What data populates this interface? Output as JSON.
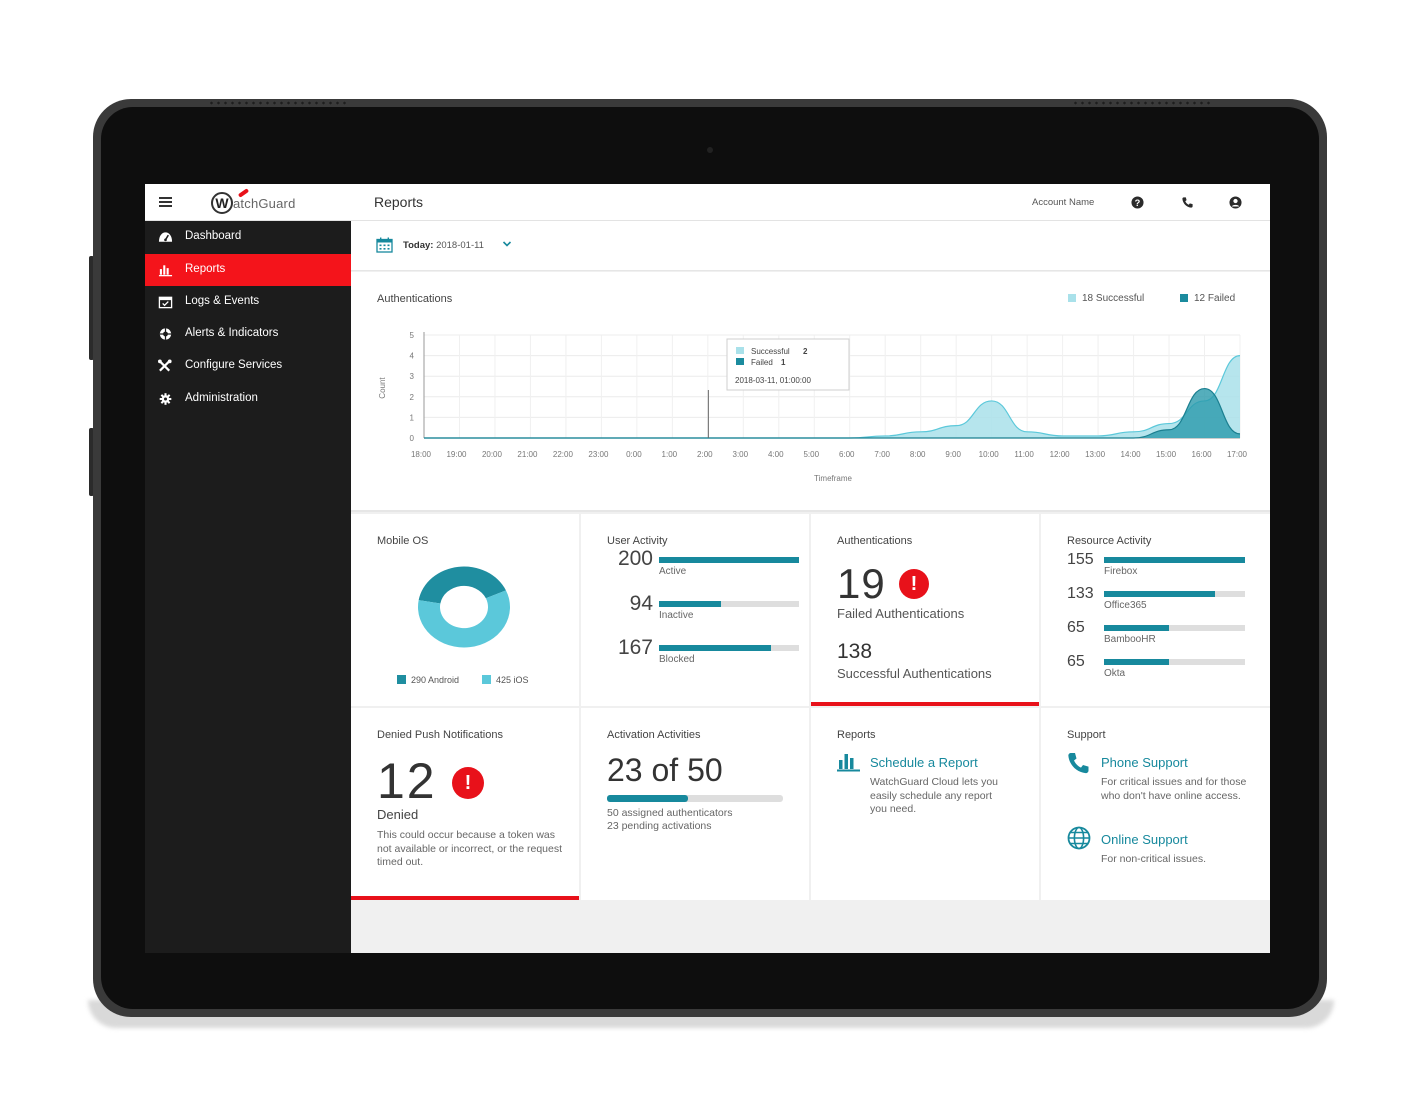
{
  "app": {
    "brand": "WatchGuard",
    "page_title": "Reports"
  },
  "topbar": {
    "account_name": "Account Name",
    "icons": [
      "help-icon",
      "phone-icon",
      "user-icon"
    ]
  },
  "sidebar": {
    "items": [
      {
        "label": "Dashboard",
        "icon": "dashboard-icon",
        "active": false
      },
      {
        "label": "Reports",
        "icon": "bar-chart-icon",
        "active": true
      },
      {
        "label": "Logs & Events",
        "icon": "calendar-check-icon",
        "active": false
      },
      {
        "label": "Alerts & Indicators",
        "icon": "lifebuoy-icon",
        "active": false
      },
      {
        "label": "Configure Services",
        "icon": "tools-icon",
        "active": false
      },
      {
        "label": "Administration",
        "icon": "gear-icon",
        "active": false
      }
    ]
  },
  "date_filter": {
    "prefix": "Today:",
    "value": "2018-01-11"
  },
  "colors": {
    "accent_red": "#f4141b",
    "teal": "#17899d",
    "light_teal": "#79d3e0",
    "success_fill": "#a9e1ea",
    "failed_fill": "#2b9aab"
  },
  "auth_chart": {
    "title": "Authentications",
    "legend": [
      {
        "label": "18 Successful",
        "color": "#a9e1ea"
      },
      {
        "label": "12 Failed",
        "color": "#1b8b9e"
      }
    ],
    "tooltip": {
      "successful_label": "Successful",
      "successful_value": "2",
      "failed_label": "Failed",
      "failed_value": "1",
      "timestamp": "2018-03-11, 01:00:00"
    }
  },
  "chart_data": {
    "type": "area",
    "title": "Authentications",
    "xlabel": "Timeframe",
    "ylabel": "Count",
    "ylim": [
      0,
      5
    ],
    "yticks": [
      0,
      1,
      2,
      3,
      4,
      5
    ],
    "categories": [
      "18:00",
      "19:00",
      "20:00",
      "21:00",
      "22:00",
      "23:00",
      "0:00",
      "1:00",
      "2:00",
      "3:00",
      "4:00",
      "5:00",
      "6:00",
      "7:00",
      "8:00",
      "9:00",
      "10:00",
      "11:00",
      "12:00",
      "13:00",
      "14:00",
      "15:00",
      "16:00",
      "17:00"
    ],
    "series": [
      {
        "name": "Successful",
        "values": [
          0,
          0,
          0,
          0,
          0,
          0,
          0,
          0,
          0,
          0,
          0,
          0,
          0,
          0.1,
          0.3,
          0.6,
          1.8,
          0.3,
          0.1,
          0.1,
          0.3,
          0.7,
          1.8,
          4.0
        ]
      },
      {
        "name": "Failed",
        "values": [
          0,
          0,
          0,
          0,
          0,
          0,
          0,
          0,
          0,
          0,
          0,
          0,
          0,
          0,
          0,
          0,
          0,
          0,
          0,
          0,
          0,
          0.4,
          2.4,
          0.2
        ]
      }
    ],
    "grid": true,
    "legend_position": "top-right"
  },
  "mobile_os": {
    "title": "Mobile OS",
    "legend": [
      {
        "label": "290 Android",
        "value": 290,
        "color": "#1f8ea0"
      },
      {
        "label": "425 iOS",
        "value": 425,
        "color": "#5bc8da"
      }
    ]
  },
  "user_activity": {
    "title": "User Activity",
    "rows": [
      {
        "value": "200",
        "label": "Active",
        "fraction": 1.0
      },
      {
        "value": "94",
        "label": "Inactive",
        "fraction": 0.44
      },
      {
        "value": "167",
        "label": "Blocked",
        "fraction": 0.8
      }
    ]
  },
  "authentications_card": {
    "title": "Authentications",
    "failed_value": "19",
    "failed_label": "Failed Authentications",
    "success_value": "138",
    "success_label": "Successful Authentications"
  },
  "resource_activity": {
    "title": "Resource Activity",
    "rows": [
      {
        "value": "155",
        "label": "Firebox",
        "fraction": 1.0
      },
      {
        "value": "133",
        "label": "Office365",
        "fraction": 0.79
      },
      {
        "value": "65",
        "label": "BambooHR",
        "fraction": 0.46
      },
      {
        "value": "65",
        "label": "Okta",
        "fraction": 0.46
      }
    ]
  },
  "denied_push": {
    "title": "Denied Push Notifications",
    "value": "12",
    "label": "Denied",
    "description": "This could occur because a token was not available or incorrect, or the request timed out."
  },
  "activation": {
    "title": "Activation Activities",
    "headline": "23 of 50",
    "fraction": 0.46,
    "line1": "50 assigned authenticators",
    "line2": "23 pending activations"
  },
  "reports_card": {
    "title": "Reports",
    "link": "Schedule a Report",
    "description": "WatchGuard Cloud lets you easily schedule any report you need."
  },
  "support_card": {
    "title": "Support",
    "phone_link": "Phone Support",
    "phone_desc": "For critical issues and for those who don't have online access.",
    "online_link": "Online Support",
    "online_desc": "For non-critical issues."
  }
}
